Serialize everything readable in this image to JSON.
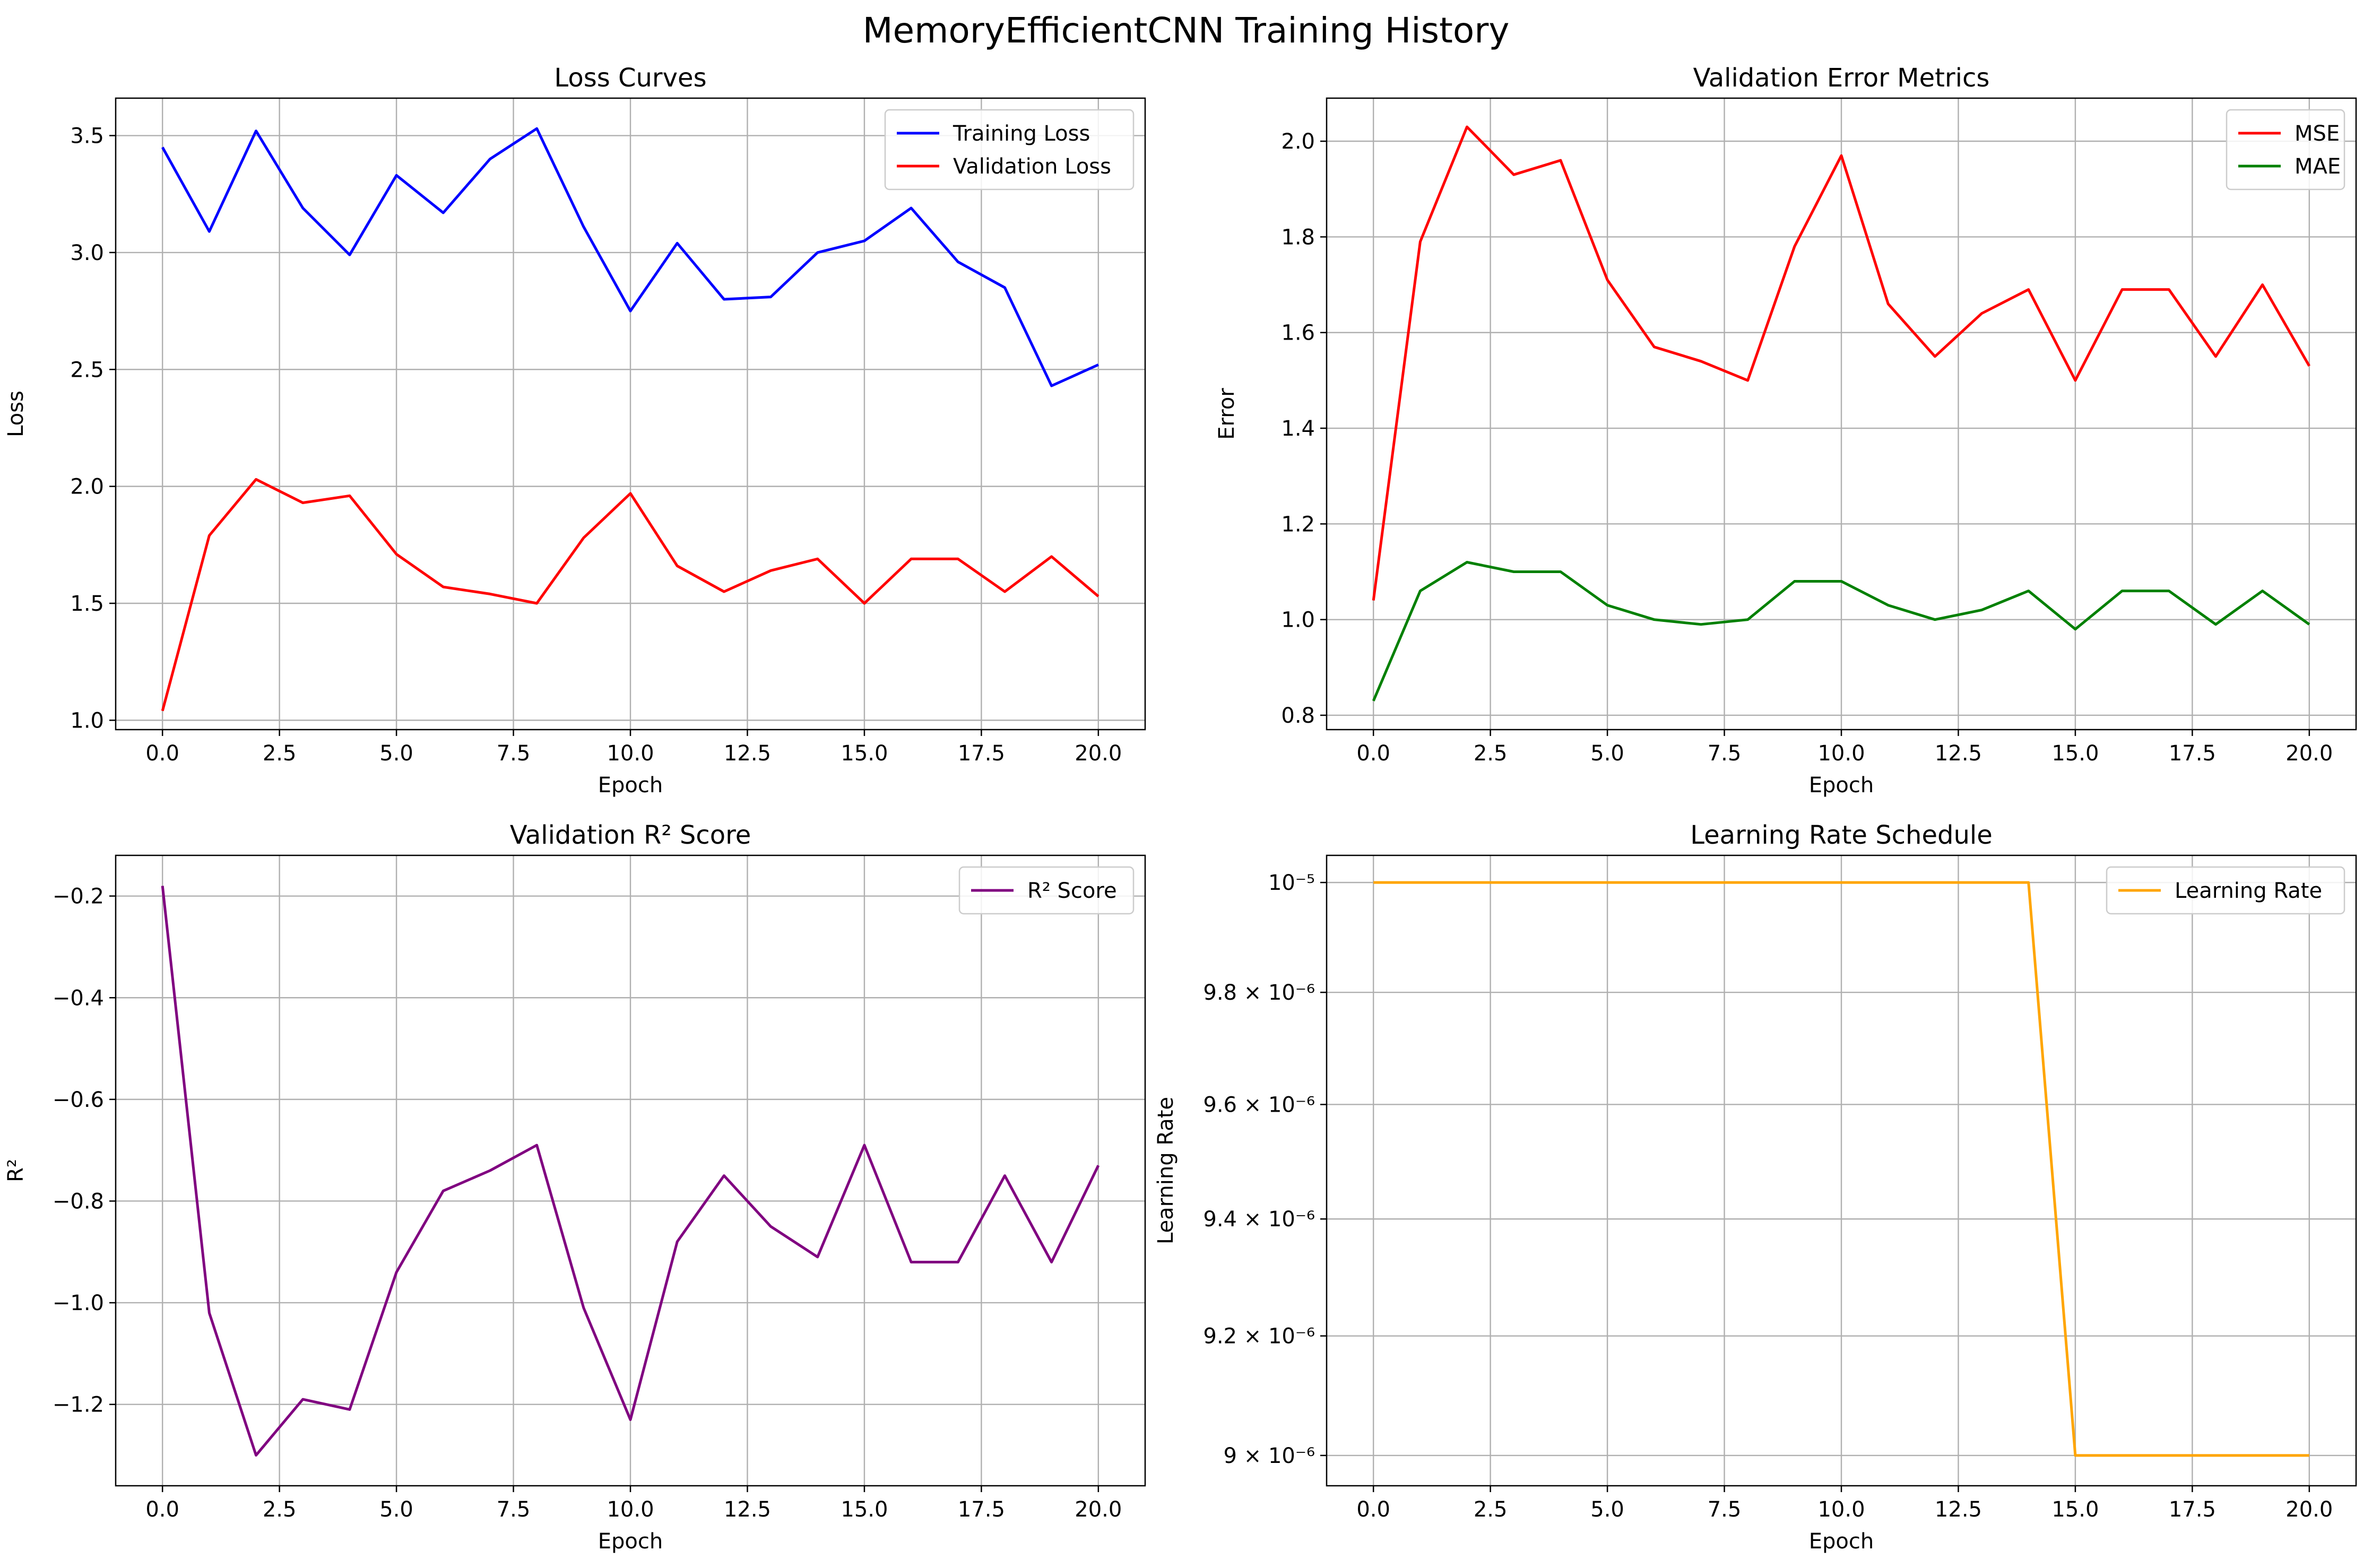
{
  "suptitle": "MemoryEfficientCNN Training History",
  "chart_data": [
    {
      "id": "loss",
      "type": "line",
      "title": "Loss Curves",
      "xlabel": "Epoch",
      "ylabel": "Loss",
      "xlim": [
        -1,
        21
      ],
      "ylim": [
        0.96,
        3.66
      ],
      "xticks": [
        0,
        2.5,
        5,
        7.5,
        10,
        12.5,
        15,
        17.5,
        20
      ],
      "xtick_labels": [
        "0.0",
        "2.5",
        "5.0",
        "7.5",
        "10.0",
        "12.5",
        "15.0",
        "17.5",
        "20.0"
      ],
      "yticks": [
        1.0,
        1.5,
        2.0,
        2.5,
        3.0,
        3.5
      ],
      "ytick_labels": [
        "1.0",
        "1.5",
        "2.0",
        "2.5",
        "3.0",
        "3.5"
      ],
      "yscale": "linear",
      "grid": true,
      "legend": "top-right",
      "x": [
        0,
        1,
        2,
        3,
        4,
        5,
        6,
        7,
        8,
        9,
        10,
        11,
        12,
        13,
        14,
        15,
        16,
        17,
        18,
        19,
        20
      ],
      "series": [
        {
          "name": "Training Loss",
          "color": "#0000ff",
          "values": [
            3.45,
            3.09,
            3.52,
            3.19,
            2.99,
            3.33,
            3.17,
            3.4,
            3.53,
            3.11,
            2.75,
            3.04,
            2.8,
            2.81,
            3.0,
            3.05,
            3.19,
            2.96,
            2.85,
            2.43,
            2.52
          ]
        },
        {
          "name": "Validation Loss",
          "color": "#ff0000",
          "values": [
            1.04,
            1.79,
            2.03,
            1.93,
            1.96,
            1.71,
            1.57,
            1.54,
            1.5,
            1.78,
            1.97,
            1.66,
            1.55,
            1.64,
            1.69,
            1.5,
            1.69,
            1.69,
            1.55,
            1.7,
            1.53
          ]
        }
      ]
    },
    {
      "id": "error",
      "type": "line",
      "title": "Validation Error Metrics",
      "xlabel": "Epoch",
      "ylabel": "Error",
      "xlim": [
        -1,
        21
      ],
      "ylim": [
        0.77,
        2.09
      ],
      "xticks": [
        0,
        2.5,
        5,
        7.5,
        10,
        12.5,
        15,
        17.5,
        20
      ],
      "xtick_labels": [
        "0.0",
        "2.5",
        "5.0",
        "7.5",
        "10.0",
        "12.5",
        "15.0",
        "17.5",
        "20.0"
      ],
      "yticks": [
        0.8,
        1.0,
        1.2,
        1.4,
        1.6,
        1.8,
        2.0
      ],
      "ytick_labels": [
        "0.8",
        "1.0",
        "1.2",
        "1.4",
        "1.6",
        "1.8",
        "2.0"
      ],
      "yscale": "linear",
      "grid": true,
      "legend": "top-right",
      "x": [
        0,
        1,
        2,
        3,
        4,
        5,
        6,
        7,
        8,
        9,
        10,
        11,
        12,
        13,
        14,
        15,
        16,
        17,
        18,
        19,
        20
      ],
      "series": [
        {
          "name": "MSE",
          "color": "#ff0000",
          "values": [
            1.04,
            1.79,
            2.03,
            1.93,
            1.96,
            1.71,
            1.57,
            1.54,
            1.5,
            1.78,
            1.97,
            1.66,
            1.55,
            1.64,
            1.69,
            1.5,
            1.69,
            1.69,
            1.55,
            1.7,
            1.53
          ]
        },
        {
          "name": "MAE",
          "color": "#008000",
          "values": [
            0.83,
            1.06,
            1.12,
            1.1,
            1.1,
            1.03,
            1.0,
            0.99,
            1.0,
            1.08,
            1.08,
            1.03,
            1.0,
            1.02,
            1.06,
            0.98,
            1.06,
            1.06,
            0.99,
            1.06,
            0.99
          ]
        }
      ]
    },
    {
      "id": "r2",
      "type": "line",
      "title": "Validation R² Score",
      "xlabel": "Epoch",
      "ylabel": "R²",
      "xlim": [
        -1,
        21
      ],
      "ylim": [
        -1.36,
        -0.12
      ],
      "xticks": [
        0,
        2.5,
        5,
        7.5,
        10,
        12.5,
        15,
        17.5,
        20
      ],
      "xtick_labels": [
        "0.0",
        "2.5",
        "5.0",
        "7.5",
        "10.0",
        "12.5",
        "15.0",
        "17.5",
        "20.0"
      ],
      "yticks": [
        -1.2,
        -1.0,
        -0.8,
        -0.6,
        -0.4,
        -0.2
      ],
      "ytick_labels": [
        "−1.2",
        "−1.0",
        "−0.8",
        "−0.6",
        "−0.4",
        "−0.2"
      ],
      "yscale": "linear",
      "grid": true,
      "legend": "top-right",
      "x": [
        0,
        1,
        2,
        3,
        4,
        5,
        6,
        7,
        8,
        9,
        10,
        11,
        12,
        13,
        14,
        15,
        16,
        17,
        18,
        19,
        20
      ],
      "series": [
        {
          "name": "R² Score",
          "color": "#800080",
          "values": [
            -0.18,
            -1.02,
            -1.3,
            -1.19,
            -1.21,
            -0.94,
            -0.78,
            -0.74,
            -0.69,
            -1.01,
            -1.23,
            -0.88,
            -0.75,
            -0.85,
            -0.91,
            -0.69,
            -0.92,
            -0.92,
            -0.75,
            -0.92,
            -0.73
          ]
        }
      ]
    },
    {
      "id": "lr",
      "type": "line",
      "title": "Learning Rate Schedule",
      "xlabel": "Epoch",
      "ylabel": "Learning Rate",
      "xlim": [
        -1,
        21
      ],
      "ylim": [
        8.95e-06,
        1.005e-05
      ],
      "xticks": [
        0,
        2.5,
        5,
        7.5,
        10,
        12.5,
        15,
        17.5,
        20
      ],
      "xtick_labels": [
        "0.0",
        "2.5",
        "5.0",
        "7.5",
        "10.0",
        "12.5",
        "15.0",
        "17.5",
        "20.0"
      ],
      "yticks": [
        9e-06,
        9.2e-06,
        9.4e-06,
        9.6e-06,
        9.8e-06,
        1e-05
      ],
      "ytick_labels": [
        "9 × 10⁻⁶",
        "9.2 × 10⁻⁶",
        "9.4 × 10⁻⁶",
        "9.6 × 10⁻⁶",
        "9.8 × 10⁻⁶",
        "10⁻⁵"
      ],
      "yscale": "log",
      "grid": true,
      "legend": "top-right",
      "x": [
        0,
        1,
        2,
        3,
        4,
        5,
        6,
        7,
        8,
        9,
        10,
        11,
        12,
        13,
        14,
        15,
        16,
        17,
        18,
        19,
        20
      ],
      "series": [
        {
          "name": "Learning Rate",
          "color": "#ffa500",
          "values": [
            1e-05,
            1e-05,
            1e-05,
            1e-05,
            1e-05,
            1e-05,
            1e-05,
            1e-05,
            1e-05,
            1e-05,
            1e-05,
            1e-05,
            1e-05,
            1e-05,
            1e-05,
            9e-06,
            9e-06,
            9e-06,
            9e-06,
            9e-06,
            9e-06
          ]
        }
      ]
    }
  ]
}
